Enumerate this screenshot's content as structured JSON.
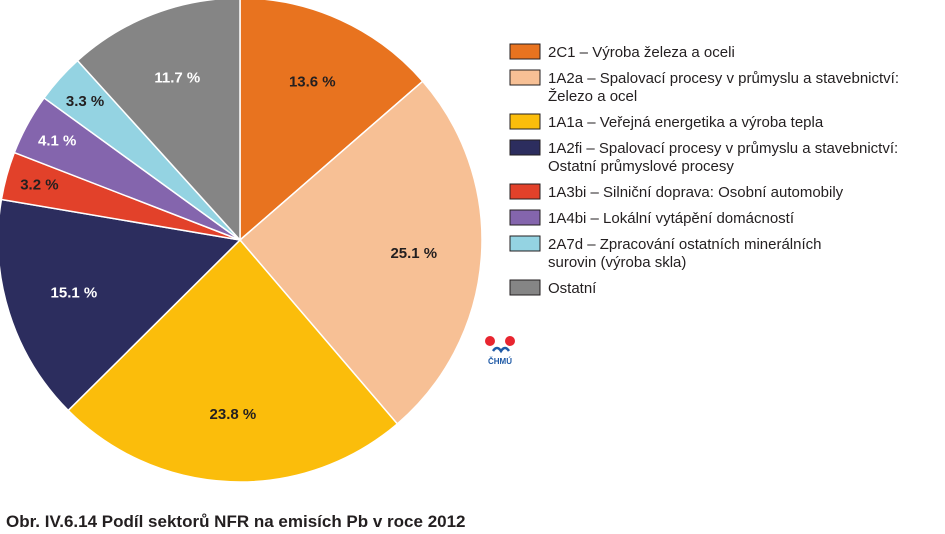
{
  "chart_data": {
    "type": "pie",
    "caption": "Obr. IV.6.14  Podíl sektorů NFR na emisích Pb v roce 2012",
    "unit": "%",
    "slices": [
      {
        "legend": [
          "2C1 – Výroba železa a oceli"
        ],
        "value": 13.6,
        "label": "13.6 %",
        "color": "#e8731f",
        "label_color": "#231f20"
      },
      {
        "legend": [
          "1A2a – Spalovací procesy v průmyslu a stavebnictví:",
          "Železo a ocel"
        ],
        "value": 25.1,
        "label": "25.1 %",
        "color": "#f7c095",
        "label_color": "#231f20"
      },
      {
        "legend": [
          "1A1a – Veřejná energetika a výroba tepla"
        ],
        "value": 23.8,
        "label": "23.8 %",
        "color": "#fbbd0b",
        "label_color": "#231f20"
      },
      {
        "legend": [
          "1A2fi – Spalovací procesy v průmyslu a stavebnictví:",
          "Ostatní průmyslové procesy"
        ],
        "value": 15.1,
        "label": "15.1 %",
        "color": "#2c2d5e",
        "label_color": "#ffffff"
      },
      {
        "legend": [
          "1A3bi – Silniční doprava: Osobní automobily"
        ],
        "value": 3.2,
        "label": "3.2 %",
        "color": "#e2412a",
        "label_color": "#231f20"
      },
      {
        "legend": [
          "1A4bi – Lokální vytápění domácností"
        ],
        "value": 4.1,
        "label": "4.1 %",
        "color": "#8465ad",
        "label_color": "#ffffff"
      },
      {
        "legend": [
          "2A7d – Zpracování ostatních minerálních",
          " surovin (výroba skla)"
        ],
        "value": 3.3,
        "label": "3.3 %",
        "color": "#94d3e2",
        "label_color": "#231f20"
      },
      {
        "legend": [
          "Ostatní"
        ],
        "value": 11.7,
        "label": "11.7 %",
        "color": "#858585",
        "label_color": "#ffffff"
      }
    ]
  },
  "logo": {
    "text": "ČHMÚ"
  }
}
